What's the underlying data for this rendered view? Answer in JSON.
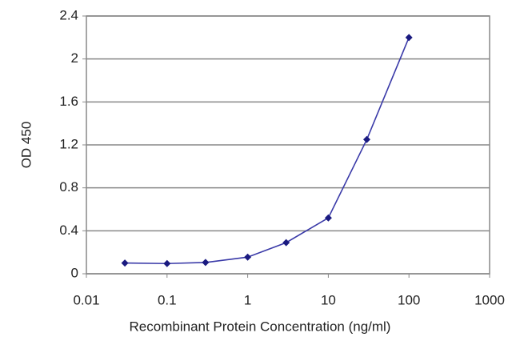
{
  "chart_data": {
    "type": "line",
    "x_label": "Recombinant Protein Concentration (ng/ml)",
    "y_label": "OD 450",
    "x": [
      0.03,
      0.1,
      0.3,
      1,
      3,
      10,
      30,
      100
    ],
    "series": [
      {
        "name": "OD 450",
        "color": "#3a3aa8",
        "marker_color": "#1a1a80",
        "values": [
          0.1,
          0.095,
          0.105,
          0.155,
          0.29,
          0.52,
          1.25,
          2.2
        ]
      }
    ],
    "xlim": [
      0.01,
      1000
    ],
    "xticks": [
      0.01,
      0.1,
      1,
      10,
      100,
      1000
    ],
    "x_log": true,
    "ylim": [
      0,
      2.4
    ],
    "yticks": [
      0,
      0.4,
      0.8,
      1.2,
      1.6,
      2,
      2.4
    ],
    "grid": true
  }
}
